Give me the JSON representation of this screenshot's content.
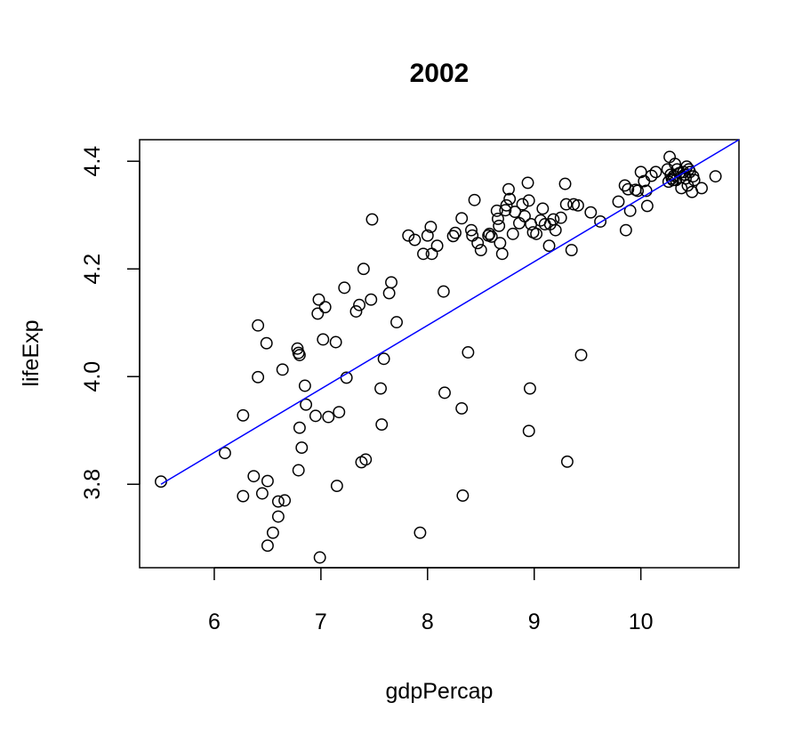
{
  "chart_data": {
    "type": "scatter",
    "title": "2002",
    "xlabel": "gdpPercap",
    "ylabel": "lifeExp",
    "xlim": [
      5.3,
      10.92
    ],
    "ylim": [
      3.645,
      4.44
    ],
    "xticks": [
      6,
      7,
      8,
      9,
      10
    ],
    "yticks": [
      3.8,
      4.0,
      4.2,
      4.4
    ],
    "xtick_labels": [
      "6",
      "7",
      "8",
      "9",
      "10"
    ],
    "ytick_labels": [
      "3.8",
      "4.0",
      "4.2",
      "4.4"
    ],
    "grid": false,
    "legend": "none",
    "point_style": "open-circle",
    "point_color": "#000000",
    "trend_color": "#0000ff",
    "trend_line": {
      "x": [
        5.5,
        10.92
      ],
      "y": [
        3.8,
        4.44
      ]
    },
    "points": [
      [
        5.5,
        3.805
      ],
      [
        6.1,
        3.858
      ],
      [
        6.27,
        3.928
      ],
      [
        6.27,
        3.778
      ],
      [
        6.37,
        3.815
      ],
      [
        6.41,
        4.095
      ],
      [
        6.41,
        3.999
      ],
      [
        6.45,
        3.783
      ],
      [
        6.49,
        4.062
      ],
      [
        6.5,
        3.806
      ],
      [
        6.5,
        3.686
      ],
      [
        6.55,
        3.71
      ],
      [
        6.6,
        3.74
      ],
      [
        6.6,
        3.768
      ],
      [
        6.64,
        4.013
      ],
      [
        6.66,
        3.77
      ],
      [
        6.78,
        4.052
      ],
      [
        6.79,
        3.826
      ],
      [
        6.79,
        4.044
      ],
      [
        6.8,
        4.04
      ],
      [
        6.8,
        3.905
      ],
      [
        6.82,
        3.868
      ],
      [
        6.85,
        3.983
      ],
      [
        6.86,
        3.948
      ],
      [
        6.95,
        3.927
      ],
      [
        6.97,
        4.117
      ],
      [
        6.98,
        4.143
      ],
      [
        6.99,
        3.664
      ],
      [
        7.02,
        4.069
      ],
      [
        7.04,
        4.129
      ],
      [
        7.07,
        3.925
      ],
      [
        7.14,
        4.064
      ],
      [
        7.15,
        3.797
      ],
      [
        7.17,
        3.934
      ],
      [
        7.22,
        4.165
      ],
      [
        7.24,
        3.998
      ],
      [
        7.33,
        4.121
      ],
      [
        7.36,
        4.133
      ],
      [
        7.38,
        3.841
      ],
      [
        7.4,
        4.2
      ],
      [
        7.42,
        3.846
      ],
      [
        7.47,
        4.143
      ],
      [
        7.48,
        4.292
      ],
      [
        7.56,
        3.978
      ],
      [
        7.57,
        3.911
      ],
      [
        7.59,
        4.033
      ],
      [
        7.64,
        4.155
      ],
      [
        7.66,
        4.175
      ],
      [
        7.71,
        4.101
      ],
      [
        7.82,
        4.262
      ],
      [
        7.88,
        4.254
      ],
      [
        7.93,
        3.71
      ],
      [
        7.96,
        4.228
      ],
      [
        8.0,
        4.262
      ],
      [
        8.03,
        4.278
      ],
      [
        8.04,
        4.228
      ],
      [
        8.09,
        4.243
      ],
      [
        8.15,
        4.158
      ],
      [
        8.16,
        3.97
      ],
      [
        8.24,
        4.261
      ],
      [
        8.26,
        4.267
      ],
      [
        8.32,
        4.294
      ],
      [
        8.32,
        3.941
      ],
      [
        8.33,
        3.779
      ],
      [
        8.38,
        4.045
      ],
      [
        8.41,
        4.272
      ],
      [
        8.42,
        4.262
      ],
      [
        8.44,
        4.328
      ],
      [
        8.47,
        4.248
      ],
      [
        8.5,
        4.235
      ],
      [
        8.57,
        4.262
      ],
      [
        8.58,
        4.265
      ],
      [
        8.6,
        4.26
      ],
      [
        8.65,
        4.308
      ],
      [
        8.66,
        4.293
      ],
      [
        8.67,
        4.28
      ],
      [
        8.68,
        4.248
      ],
      [
        8.7,
        4.228
      ],
      [
        8.73,
        4.309
      ],
      [
        8.74,
        4.318
      ],
      [
        8.76,
        4.348
      ],
      [
        8.77,
        4.33
      ],
      [
        8.8,
        4.265
      ],
      [
        8.82,
        4.306
      ],
      [
        8.86,
        4.285
      ],
      [
        8.89,
        4.32
      ],
      [
        8.91,
        4.298
      ],
      [
        8.94,
        4.36
      ],
      [
        8.95,
        4.327
      ],
      [
        8.95,
        3.899
      ],
      [
        8.96,
        3.978
      ],
      [
        8.97,
        4.283
      ],
      [
        8.99,
        4.268
      ],
      [
        9.02,
        4.265
      ],
      [
        9.06,
        4.29
      ],
      [
        9.08,
        4.312
      ],
      [
        9.1,
        4.283
      ],
      [
        9.14,
        4.243
      ],
      [
        9.15,
        4.283
      ],
      [
        9.18,
        4.292
      ],
      [
        9.2,
        4.272
      ],
      [
        9.25,
        4.295
      ],
      [
        9.29,
        4.358
      ],
      [
        9.3,
        4.32
      ],
      [
        9.31,
        3.842
      ],
      [
        9.35,
        4.235
      ],
      [
        9.37,
        4.32
      ],
      [
        9.41,
        4.318
      ],
      [
        9.44,
        4.04
      ],
      [
        9.53,
        4.305
      ],
      [
        9.62,
        4.288
      ],
      [
        9.79,
        4.325
      ],
      [
        9.85,
        4.355
      ],
      [
        9.86,
        4.272
      ],
      [
        9.88,
        4.348
      ],
      [
        9.9,
        4.308
      ],
      [
        9.95,
        4.347
      ],
      [
        9.97,
        4.345
      ],
      [
        10.0,
        4.38
      ],
      [
        10.03,
        4.363
      ],
      [
        10.05,
        4.345
      ],
      [
        10.06,
        4.317
      ],
      [
        10.1,
        4.373
      ],
      [
        10.14,
        4.38
      ],
      [
        10.25,
        4.385
      ],
      [
        10.26,
        4.362
      ],
      [
        10.27,
        4.408
      ],
      [
        10.28,
        4.375
      ],
      [
        10.29,
        4.368
      ],
      [
        10.3,
        4.365
      ],
      [
        10.31,
        4.373
      ],
      [
        10.32,
        4.395
      ],
      [
        10.33,
        4.365
      ],
      [
        10.34,
        4.385
      ],
      [
        10.36,
        4.378
      ],
      [
        10.37,
        4.37
      ],
      [
        10.38,
        4.35
      ],
      [
        10.4,
        4.38
      ],
      [
        10.41,
        4.375
      ],
      [
        10.42,
        4.368
      ],
      [
        10.43,
        4.39
      ],
      [
        10.44,
        4.355
      ],
      [
        10.45,
        4.385
      ],
      [
        10.46,
        4.38
      ],
      [
        10.48,
        4.343
      ],
      [
        10.49,
        4.372
      ],
      [
        10.5,
        4.365
      ],
      [
        10.57,
        4.35
      ],
      [
        10.7,
        4.372
      ]
    ]
  }
}
